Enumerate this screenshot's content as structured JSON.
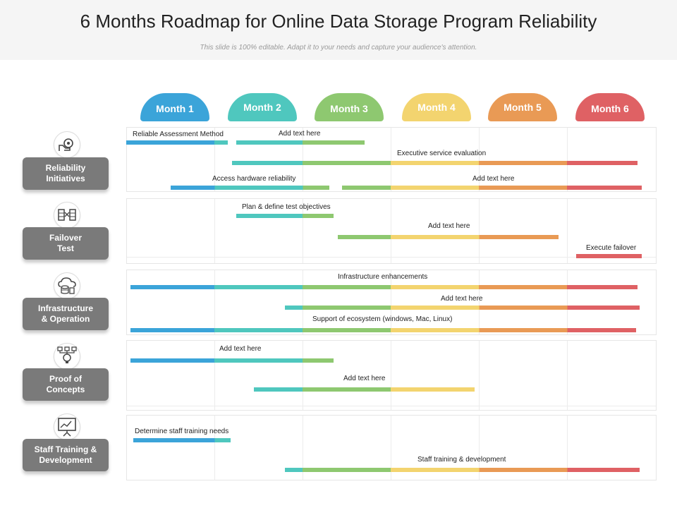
{
  "title": "6 Months Roadmap for Online Data Storage Program Reliability",
  "subtitle": "This slide is 100% editable. Adapt it to your needs and capture your audience's attention.",
  "colors": {
    "month1": "#3ba4d9",
    "month2": "#4fc7be",
    "month3": "#8ec870",
    "month4": "#f3d46f",
    "month5": "#e99a55",
    "month6": "#df6164",
    "category": "#7a7a7a"
  },
  "months": [
    "Month 1",
    "Month 2",
    "Month 3",
    "Month 4",
    "Month 5",
    "Month 6"
  ],
  "categories": [
    {
      "label": "Reliability\nInitiatives",
      "icon": "hand-gear-icon",
      "tasks": [
        {
          "label": "Reliable Assessment Method",
          "start": 0.0,
          "end": 1.15
        },
        {
          "label": "Add text here",
          "start": 1.25,
          "end": 2.7
        },
        {
          "label": "Executive service evaluation",
          "start": 1.2,
          "end": 5.8
        },
        {
          "label": "Access hardware reliability",
          "start": 0.5,
          "end": 2.3
        },
        {
          "label": "Add text here",
          "start": 2.45,
          "end": 5.85
        }
      ]
    },
    {
      "label": "Failover\nTest",
      "icon": "server-exchange-icon",
      "tasks": [
        {
          "label": "Plan & define test objectives",
          "start": 1.25,
          "end": 2.35
        },
        {
          "label": "Add text here",
          "start": 2.4,
          "end": 4.9
        },
        {
          "label": "Execute failover",
          "start": 5.1,
          "end": 5.85
        }
      ]
    },
    {
      "label": "Infrastructure\n& Operation",
      "icon": "cloud-database-icon",
      "tasks": [
        {
          "label": "Infrastructure enhancements",
          "start": 0.05,
          "end": 5.8
        },
        {
          "label": "Add text here",
          "start": 1.8,
          "end": 5.82
        },
        {
          "label": "Support of ecosystem (windows, Mac, Linux)",
          "start": 0.05,
          "end": 5.78
        }
      ]
    },
    {
      "label": "Proof of\nConcepts",
      "icon": "idea-network-icon",
      "tasks": [
        {
          "label": "Add text here",
          "start": 0.05,
          "end": 2.35
        },
        {
          "label": "Add text here",
          "start": 1.45,
          "end": 3.95
        }
      ]
    },
    {
      "label": "Staff Training &\nDevelopment",
      "icon": "presentation-board-icon",
      "tasks": [
        {
          "label": "Determine staff training needs",
          "start": 0.08,
          "end": 1.18
        },
        {
          "label": "Staff training & development",
          "start": 1.8,
          "end": 5.82
        }
      ]
    }
  ]
}
